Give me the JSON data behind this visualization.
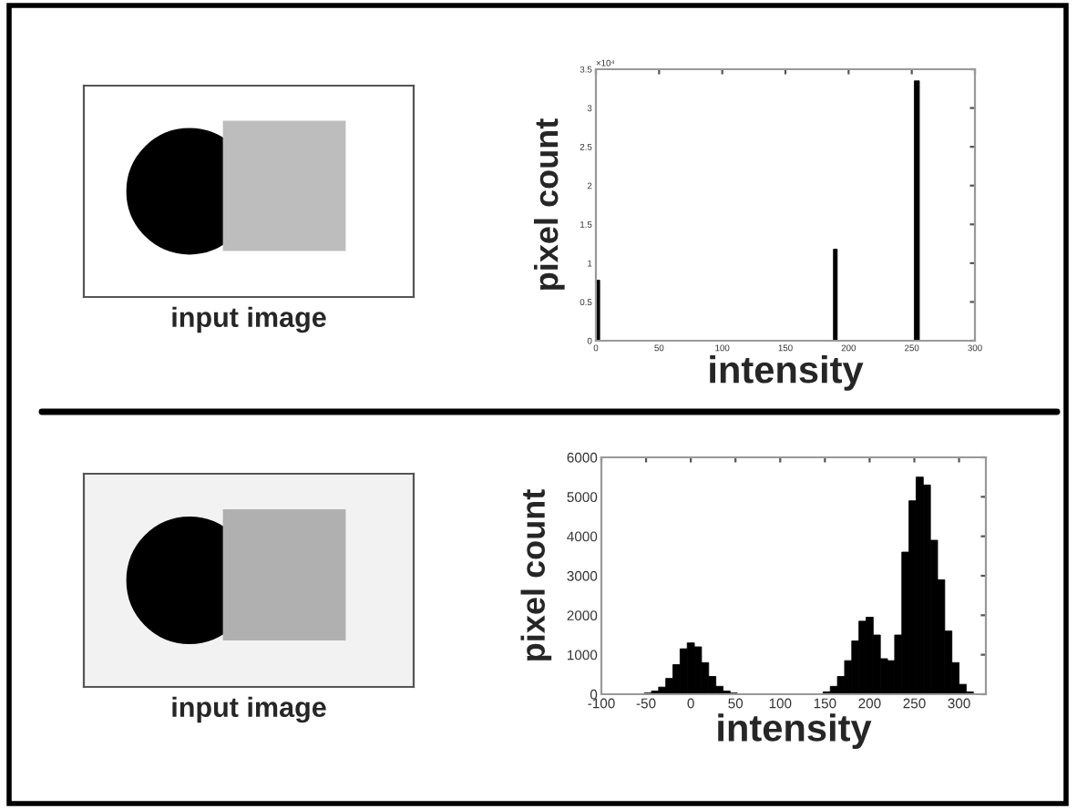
{
  "chart_data": [
    {
      "type": "histogram",
      "xlabel": "intensity",
      "ylabel": "pixel count",
      "bins": [
        0,
        3,
        188,
        191,
        252,
        256
      ],
      "values": [
        0.78,
        0,
        1.18,
        0,
        3.35
      ],
      "color": "#000000",
      "xlim": [
        0,
        300
      ],
      "xticks": [
        0,
        50,
        100,
        150,
        200,
        250,
        300
      ],
      "ylim": [
        0,
        3.5
      ],
      "yticks": [
        0,
        0.5,
        1,
        1.5,
        2,
        2.5,
        3,
        3.5
      ],
      "grid": false,
      "annotations": [
        "×10⁴",
        "input image"
      ]
    },
    {
      "type": "histogram",
      "xlabel": "intensity",
      "ylabel": "pixel count",
      "bins": [
        -60,
        -52,
        -44,
        -36,
        -28,
        -20,
        -12,
        -4,
        4,
        12,
        20,
        28,
        36,
        44,
        52,
        60,
        68,
        76,
        84,
        92,
        100,
        108,
        116,
        124,
        132,
        140,
        148,
        156,
        164,
        172,
        180,
        188,
        196,
        204,
        212,
        220,
        228,
        236,
        244,
        252,
        260,
        268,
        276,
        284,
        292,
        300,
        308,
        316
      ],
      "values": [
        10,
        30,
        80,
        180,
        400,
        750,
        1150,
        1300,
        1200,
        800,
        450,
        200,
        80,
        30,
        10,
        0,
        0,
        0,
        0,
        0,
        0,
        0,
        0,
        0,
        0,
        0,
        60,
        200,
        450,
        850,
        1350,
        1850,
        1950,
        1500,
        900,
        850,
        1500,
        3600,
        4900,
        5500,
        5300,
        3900,
        2900,
        1600,
        800,
        250,
        60
      ],
      "color": "#000000",
      "xlim": [
        -100,
        330
      ],
      "xticks": [
        -100,
        -50,
        0,
        50,
        100,
        150,
        200,
        250,
        300
      ],
      "ylim": [
        0,
        6000
      ],
      "yticks": [
        0,
        1000,
        2000,
        3000,
        4000,
        5000,
        6000
      ],
      "grid": false,
      "annotations": [
        "input image"
      ]
    }
  ]
}
